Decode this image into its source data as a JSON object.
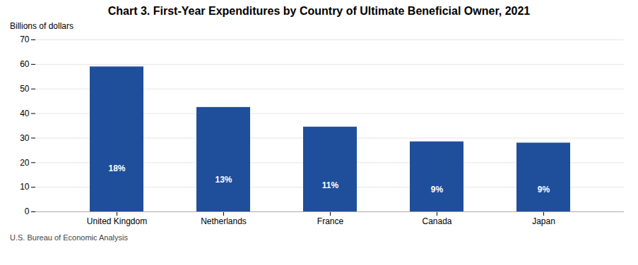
{
  "chart_data": {
    "type": "bar",
    "title": "Chart 3. First-Year Expenditures by Country of Ultimate Beneficial Owner, 2021",
    "ylabel": "Billions of dollars",
    "footnote": "U.S. Bureau of Economic Analysis",
    "categories": [
      "United Kingdom",
      "Netherlands",
      "France",
      "Canada",
      "Japan"
    ],
    "values": [
      59,
      42.5,
      34.5,
      28.5,
      28
    ],
    "percentages": [
      {
        "value": 18,
        "label": "18%"
      },
      {
        "value": 13,
        "label": "13%"
      },
      {
        "value": 11,
        "label": "11%"
      },
      {
        "value": 9,
        "label": "9%"
      },
      {
        "value": 9,
        "label": "9%"
      }
    ],
    "color": "#1f4e9b",
    "ylim": [
      0,
      70
    ],
    "yticks": [
      0,
      10,
      20,
      30,
      40,
      50,
      60,
      70
    ],
    "grid": true
  }
}
